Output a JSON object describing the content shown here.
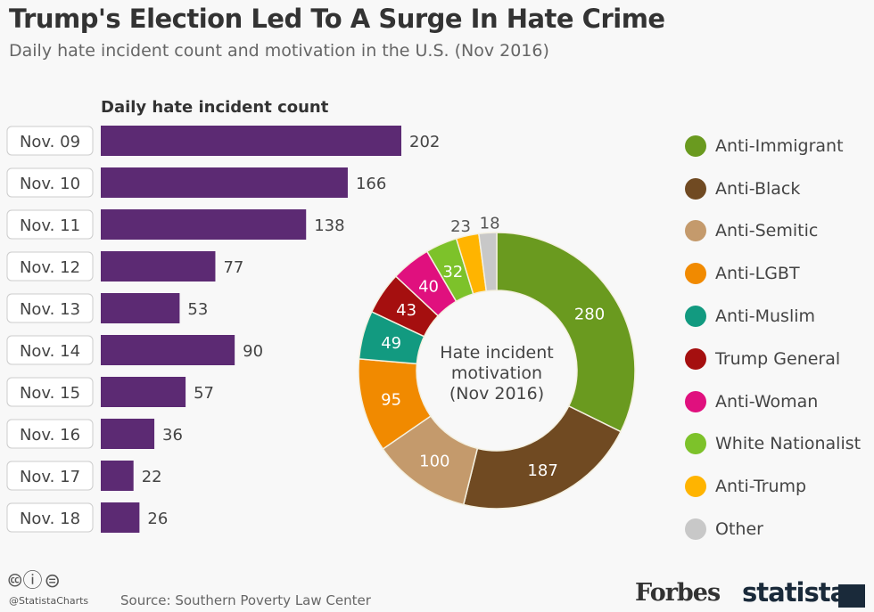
{
  "title": "Trump's Election Led To A Surge In Hate Crime",
  "subtitle": "Daily hate incident count and motivation in the U.S. (Nov 2016)",
  "chart_data": [
    {
      "type": "bar",
      "orientation": "horizontal",
      "title": "Daily hate incident count",
      "categories": [
        "Nov. 09",
        "Nov. 10",
        "Nov. 11",
        "Nov. 12",
        "Nov. 13",
        "Nov. 14",
        "Nov. 15",
        "Nov. 16",
        "Nov. 17",
        "Nov. 18"
      ],
      "values": [
        202,
        166,
        138,
        77,
        53,
        90,
        57,
        36,
        22,
        26
      ],
      "color": "#5c2a73"
    },
    {
      "type": "pie",
      "donut": true,
      "center_label": [
        "Hate incident",
        "motivation",
        "(Nov 2016)"
      ],
      "slices": [
        {
          "label": "Anti-Immigrant",
          "value": 280,
          "color": "#6a9a1f"
        },
        {
          "label": "Anti-Black",
          "value": 187,
          "color": "#704a22"
        },
        {
          "label": "Anti-Semitic",
          "value": 100,
          "color": "#c49a6c"
        },
        {
          "label": "Anti-LGBT",
          "value": 95,
          "color": "#f18a00"
        },
        {
          "label": "Anti-Muslim",
          "value": 49,
          "color": "#129a80"
        },
        {
          "label": "Trump General",
          "value": 43,
          "color": "#a50f0f"
        },
        {
          "label": "Anti-Woman",
          "value": 40,
          "color": "#e0107e"
        },
        {
          "label": "White Nationalist",
          "value": 32,
          "color": "#7dc22a"
        },
        {
          "label": "Anti-Trump",
          "value": 23,
          "color": "#ffb400"
        },
        {
          "label": "Other",
          "value": 18,
          "color": "#c8c8c8"
        }
      ],
      "legend": "right"
    }
  ],
  "footer": {
    "cc": "🅭ⓘ⊜",
    "handle": "@StatistaCharts",
    "source": "Source: Southern Poverty Law Center",
    "forbes": "Forbes",
    "statista": "statista"
  }
}
